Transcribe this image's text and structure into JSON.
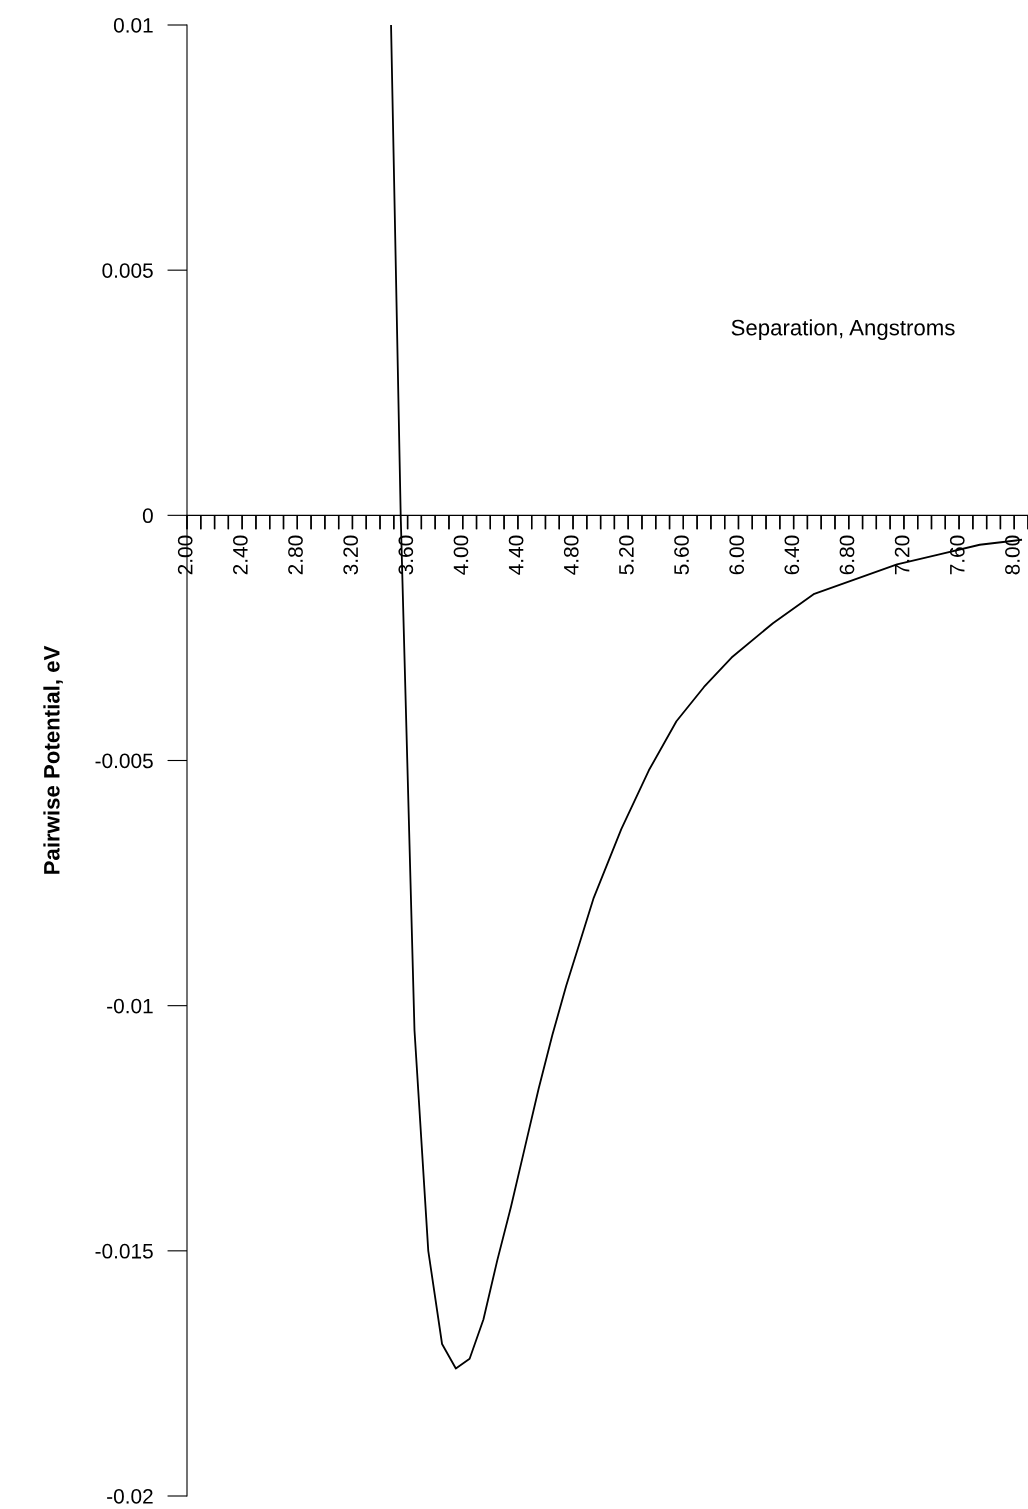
{
  "chart_data": {
    "type": "line",
    "xlabel": "Separation, Angstroms",
    "ylabel": "Pairwise Potential, eV",
    "x": [
      3.48,
      3.55,
      3.65,
      3.75,
      3.85,
      3.95,
      4.05,
      4.15,
      4.25,
      4.35,
      4.45,
      4.55,
      4.65,
      4.75,
      4.85,
      4.95,
      5.15,
      5.35,
      5.55,
      5.75,
      5.95,
      6.25,
      6.55,
      6.85,
      7.15,
      7.45,
      7.75,
      8.05
    ],
    "series": [
      {
        "color": "#000000",
        "values": [
          0.01,
          0.0,
          -0.0105,
          -0.015,
          -0.0169,
          -0.0174,
          -0.0172,
          -0.0164,
          -0.0152,
          -0.0141,
          -0.0129,
          -0.0117,
          -0.0106,
          -0.0096,
          -0.0087,
          -0.0078,
          -0.0064,
          -0.0052,
          -0.0042,
          -0.0035,
          -0.0029,
          -0.0022,
          -0.0016,
          -0.0013,
          -0.001,
          -0.0008,
          -0.0006,
          -0.0005
        ]
      }
    ],
    "xlim": [
      2.0,
      8.1
    ],
    "ylim": [
      -0.02,
      0.01
    ],
    "xticks": [
      {
        "value": 2.0,
        "label": "2.00"
      },
      {
        "value": 2.1,
        "label": null
      },
      {
        "value": 2.2,
        "label": null
      },
      {
        "value": 2.3,
        "label": null
      },
      {
        "value": 2.4,
        "label": "2.40"
      },
      {
        "value": 2.5,
        "label": null
      },
      {
        "value": 2.6,
        "label": null
      },
      {
        "value": 2.7,
        "label": null
      },
      {
        "value": 2.8,
        "label": "2.80"
      },
      {
        "value": 2.9,
        "label": null
      },
      {
        "value": 3.0,
        "label": null
      },
      {
        "value": 3.1,
        "label": null
      },
      {
        "value": 3.2,
        "label": "3.20"
      },
      {
        "value": 3.3,
        "label": null
      },
      {
        "value": 3.4,
        "label": null
      },
      {
        "value": 3.5,
        "label": null
      },
      {
        "value": 3.6,
        "label": "3.60"
      },
      {
        "value": 3.7,
        "label": null
      },
      {
        "value": 3.8,
        "label": null
      },
      {
        "value": 3.9,
        "label": null
      },
      {
        "value": 4.0,
        "label": "4.00"
      },
      {
        "value": 4.1,
        "label": null
      },
      {
        "value": 4.2,
        "label": null
      },
      {
        "value": 4.3,
        "label": null
      },
      {
        "value": 4.4,
        "label": "4.40"
      },
      {
        "value": 4.5,
        "label": null
      },
      {
        "value": 4.6,
        "label": null
      },
      {
        "value": 4.7,
        "label": null
      },
      {
        "value": 4.8,
        "label": "4.80"
      },
      {
        "value": 4.9,
        "label": null
      },
      {
        "value": 5.0,
        "label": null
      },
      {
        "value": 5.1,
        "label": null
      },
      {
        "value": 5.2,
        "label": "5.20"
      },
      {
        "value": 5.3,
        "label": null
      },
      {
        "value": 5.4,
        "label": null
      },
      {
        "value": 5.5,
        "label": null
      },
      {
        "value": 5.6,
        "label": "5.60"
      },
      {
        "value": 5.7,
        "label": null
      },
      {
        "value": 5.8,
        "label": null
      },
      {
        "value": 5.9,
        "label": null
      },
      {
        "value": 6.0,
        "label": "6.00"
      },
      {
        "value": 6.1,
        "label": null
      },
      {
        "value": 6.2,
        "label": null
      },
      {
        "value": 6.3,
        "label": null
      },
      {
        "value": 6.4,
        "label": "6.40"
      },
      {
        "value": 6.5,
        "label": null
      },
      {
        "value": 6.6,
        "label": null
      },
      {
        "value": 6.7,
        "label": null
      },
      {
        "value": 6.8,
        "label": "6.80"
      },
      {
        "value": 6.9,
        "label": null
      },
      {
        "value": 7.0,
        "label": null
      },
      {
        "value": 7.1,
        "label": null
      },
      {
        "value": 7.2,
        "label": "7.20"
      },
      {
        "value": 7.3,
        "label": null
      },
      {
        "value": 7.4,
        "label": null
      },
      {
        "value": 7.5,
        "label": null
      },
      {
        "value": 7.6,
        "label": "7.60"
      },
      {
        "value": 7.7,
        "label": null
      },
      {
        "value": 7.8,
        "label": null
      },
      {
        "value": 7.9,
        "label": null
      },
      {
        "value": 8.0,
        "label": "8.00"
      },
      {
        "value": 8.1,
        "label": null
      }
    ],
    "yticks": [
      0.01,
      0.005,
      0,
      -0.005,
      -0.01,
      -0.015,
      -0.02
    ],
    "grid": false,
    "legend": false,
    "marker": "none",
    "line_style": "solid"
  }
}
